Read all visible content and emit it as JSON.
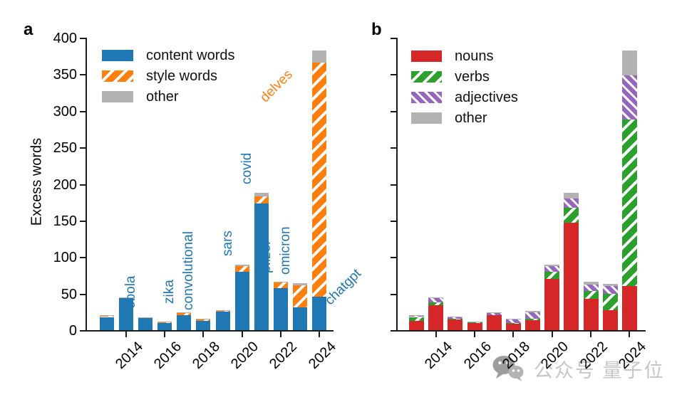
{
  "figure": {
    "panels": [
      {
        "letter": "a"
      },
      {
        "letter": "b"
      }
    ],
    "watermark": {
      "icon": "wechat-icon",
      "text": "公众号 量子位"
    }
  },
  "chart_data": [
    {
      "panel": "a",
      "type": "bar",
      "stacked": true,
      "ylabel": "Excess words",
      "ylim": [
        0,
        400
      ],
      "yticks": [
        0,
        50,
        100,
        150,
        200,
        250,
        300,
        350,
        400
      ],
      "xtick_labels": [
        "2014",
        "2016",
        "2018",
        "2020",
        "2022",
        "2024"
      ],
      "categories": [
        2013,
        2014,
        2015,
        2016,
        2017,
        2018,
        2019,
        2020,
        2021,
        2022,
        2023,
        2024
      ],
      "legend_position": "upper-left-inside",
      "grid": false,
      "series": [
        {
          "name": "content words",
          "color": "#1f77b4",
          "hatch": "none",
          "values": [
            18,
            44,
            17,
            10,
            20,
            13,
            25,
            80,
            173,
            57,
            31,
            46
          ]
        },
        {
          "name": "style words",
          "color": "#ff7f0e",
          "hatch": "forward-diagonal",
          "values": [
            1.5,
            0.5,
            0.5,
            1,
            3,
            2,
            1,
            8,
            10,
            8,
            30,
            320
          ]
        },
        {
          "name": "other",
          "color": "#b2b2b2",
          "hatch": "none",
          "values": [
            0.5,
            0.5,
            0.5,
            1,
            1,
            1,
            1,
            2,
            5,
            1,
            3,
            16
          ]
        }
      ],
      "annotations": [
        {
          "text": "ebola",
          "year": 2015,
          "color": "#1f77b4",
          "orientation": "vertical"
        },
        {
          "text": "zika",
          "year": 2017,
          "color": "#1f77b4",
          "orientation": "vertical"
        },
        {
          "text": "convolutional",
          "year": 2018,
          "color": "#1f77b4",
          "orientation": "vertical"
        },
        {
          "text": "sars",
          "year": 2020,
          "color": "#1f77b4",
          "orientation": "vertical"
        },
        {
          "text": "covid",
          "year": 2021,
          "color": "#1f77b4",
          "orientation": "vertical"
        },
        {
          "text": "pfizer",
          "year": 2022,
          "color": "#1f77b4",
          "orientation": "vertical"
        },
        {
          "text": "omicron",
          "year": 2023,
          "color": "#1f77b4",
          "orientation": "vertical"
        },
        {
          "text": "delves",
          "year": 2024,
          "color": "#ff7f0e",
          "orientation": "diagonal",
          "placement": "upper-left-of-bar"
        },
        {
          "text": "chatgpt",
          "year": 2024,
          "color": "#1f77b4",
          "orientation": "diagonal",
          "placement": "lower-right-of-bar"
        }
      ]
    },
    {
      "panel": "b",
      "type": "bar",
      "stacked": true,
      "ylabel": "",
      "ylim": [
        0,
        400
      ],
      "yticks": [
        0,
        50,
        100,
        150,
        200,
        250,
        300,
        350,
        400
      ],
      "xtick_labels": [
        "2014",
        "2016",
        "2018",
        "2020",
        "2022",
        "2024"
      ],
      "categories": [
        2013,
        2014,
        2015,
        2016,
        2017,
        2018,
        2019,
        2020,
        2021,
        2022,
        2023,
        2024
      ],
      "legend_position": "upper-left-inside",
      "grid": false,
      "series": [
        {
          "name": "nouns",
          "color": "#d62728",
          "hatch": "none",
          "values": [
            13,
            34,
            15,
            10,
            20,
            9,
            14,
            70,
            147,
            43,
            27,
            60
          ]
        },
        {
          "name": "verbs",
          "color": "#2ca02c",
          "hatch": "forward-diagonal",
          "values": [
            5,
            4,
            1,
            0.5,
            0.5,
            1,
            1.5,
            10,
            20,
            11,
            23,
            228
          ]
        },
        {
          "name": "adjectives",
          "color": "#9467bd",
          "hatch": "backward-diagonal",
          "values": [
            1,
            6,
            2,
            0.5,
            3,
            5.5,
            9,
            8,
            13,
            8,
            10,
            60
          ]
        },
        {
          "name": "other",
          "color": "#b2b2b2",
          "hatch": "none",
          "values": [
            1,
            1,
            0.5,
            1,
            0.5,
            0.5,
            1.5,
            2,
            8,
            4,
            3,
            34
          ]
        }
      ],
      "annotations": []
    }
  ]
}
